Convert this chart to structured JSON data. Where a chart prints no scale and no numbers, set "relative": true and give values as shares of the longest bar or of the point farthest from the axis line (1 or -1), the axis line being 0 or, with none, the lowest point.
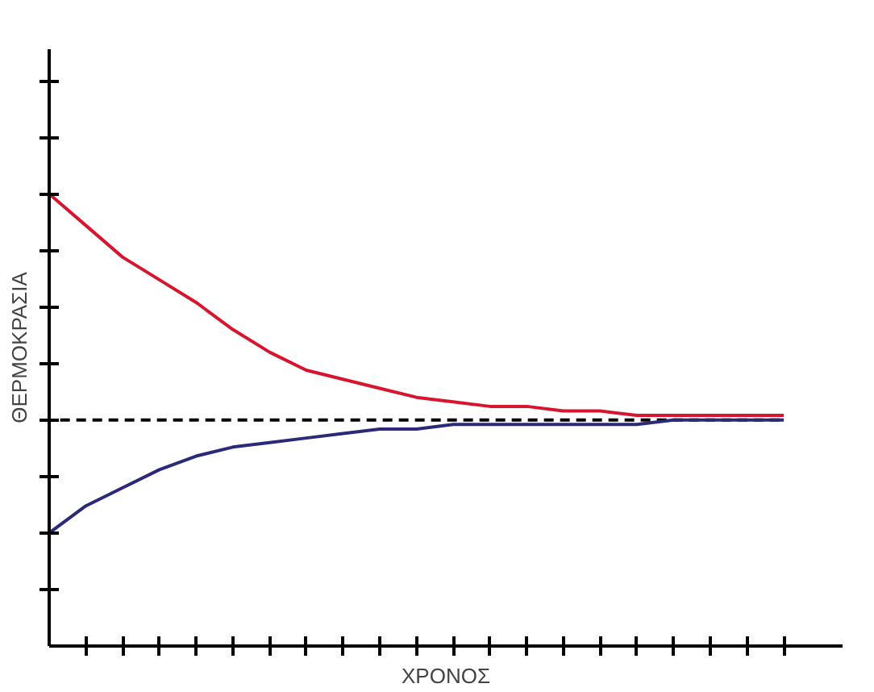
{
  "chart_data": {
    "type": "line",
    "relative": true,
    "xlabel": "ΧΡΟΝΟΣ",
    "ylabel": "ΘΕΡΜΟΚΡΑΣΙΑ",
    "line_style": "solid",
    "categories": [
      null,
      null,
      null,
      null,
      null,
      null,
      null,
      null,
      null,
      null,
      null,
      null,
      null,
      null,
      null,
      null,
      null,
      null,
      null,
      null,
      null
    ],
    "series": [
      {
        "color": "#d7152f",
        "values": [
          1.0,
          0.93,
          0.86,
          0.81,
          0.76,
          0.7,
          0.65,
          0.61,
          0.59,
          0.57,
          0.55,
          0.54,
          0.53,
          0.53,
          0.52,
          0.52,
          0.51,
          0.51,
          0.51,
          0.51,
          0.51
        ]
      },
      {
        "color": "#2b2a78",
        "values": [
          0.25,
          0.31,
          0.35,
          0.39,
          0.42,
          0.44,
          0.45,
          0.46,
          0.47,
          0.48,
          0.48,
          0.49,
          0.49,
          0.49,
          0.49,
          0.49,
          0.49,
          0.5,
          0.5,
          0.5,
          0.5
        ]
      }
    ],
    "ref_lines": [
      {
        "axis": "y",
        "value": 0.5,
        "color": "#000000",
        "line_style": "dashed"
      }
    ]
  }
}
